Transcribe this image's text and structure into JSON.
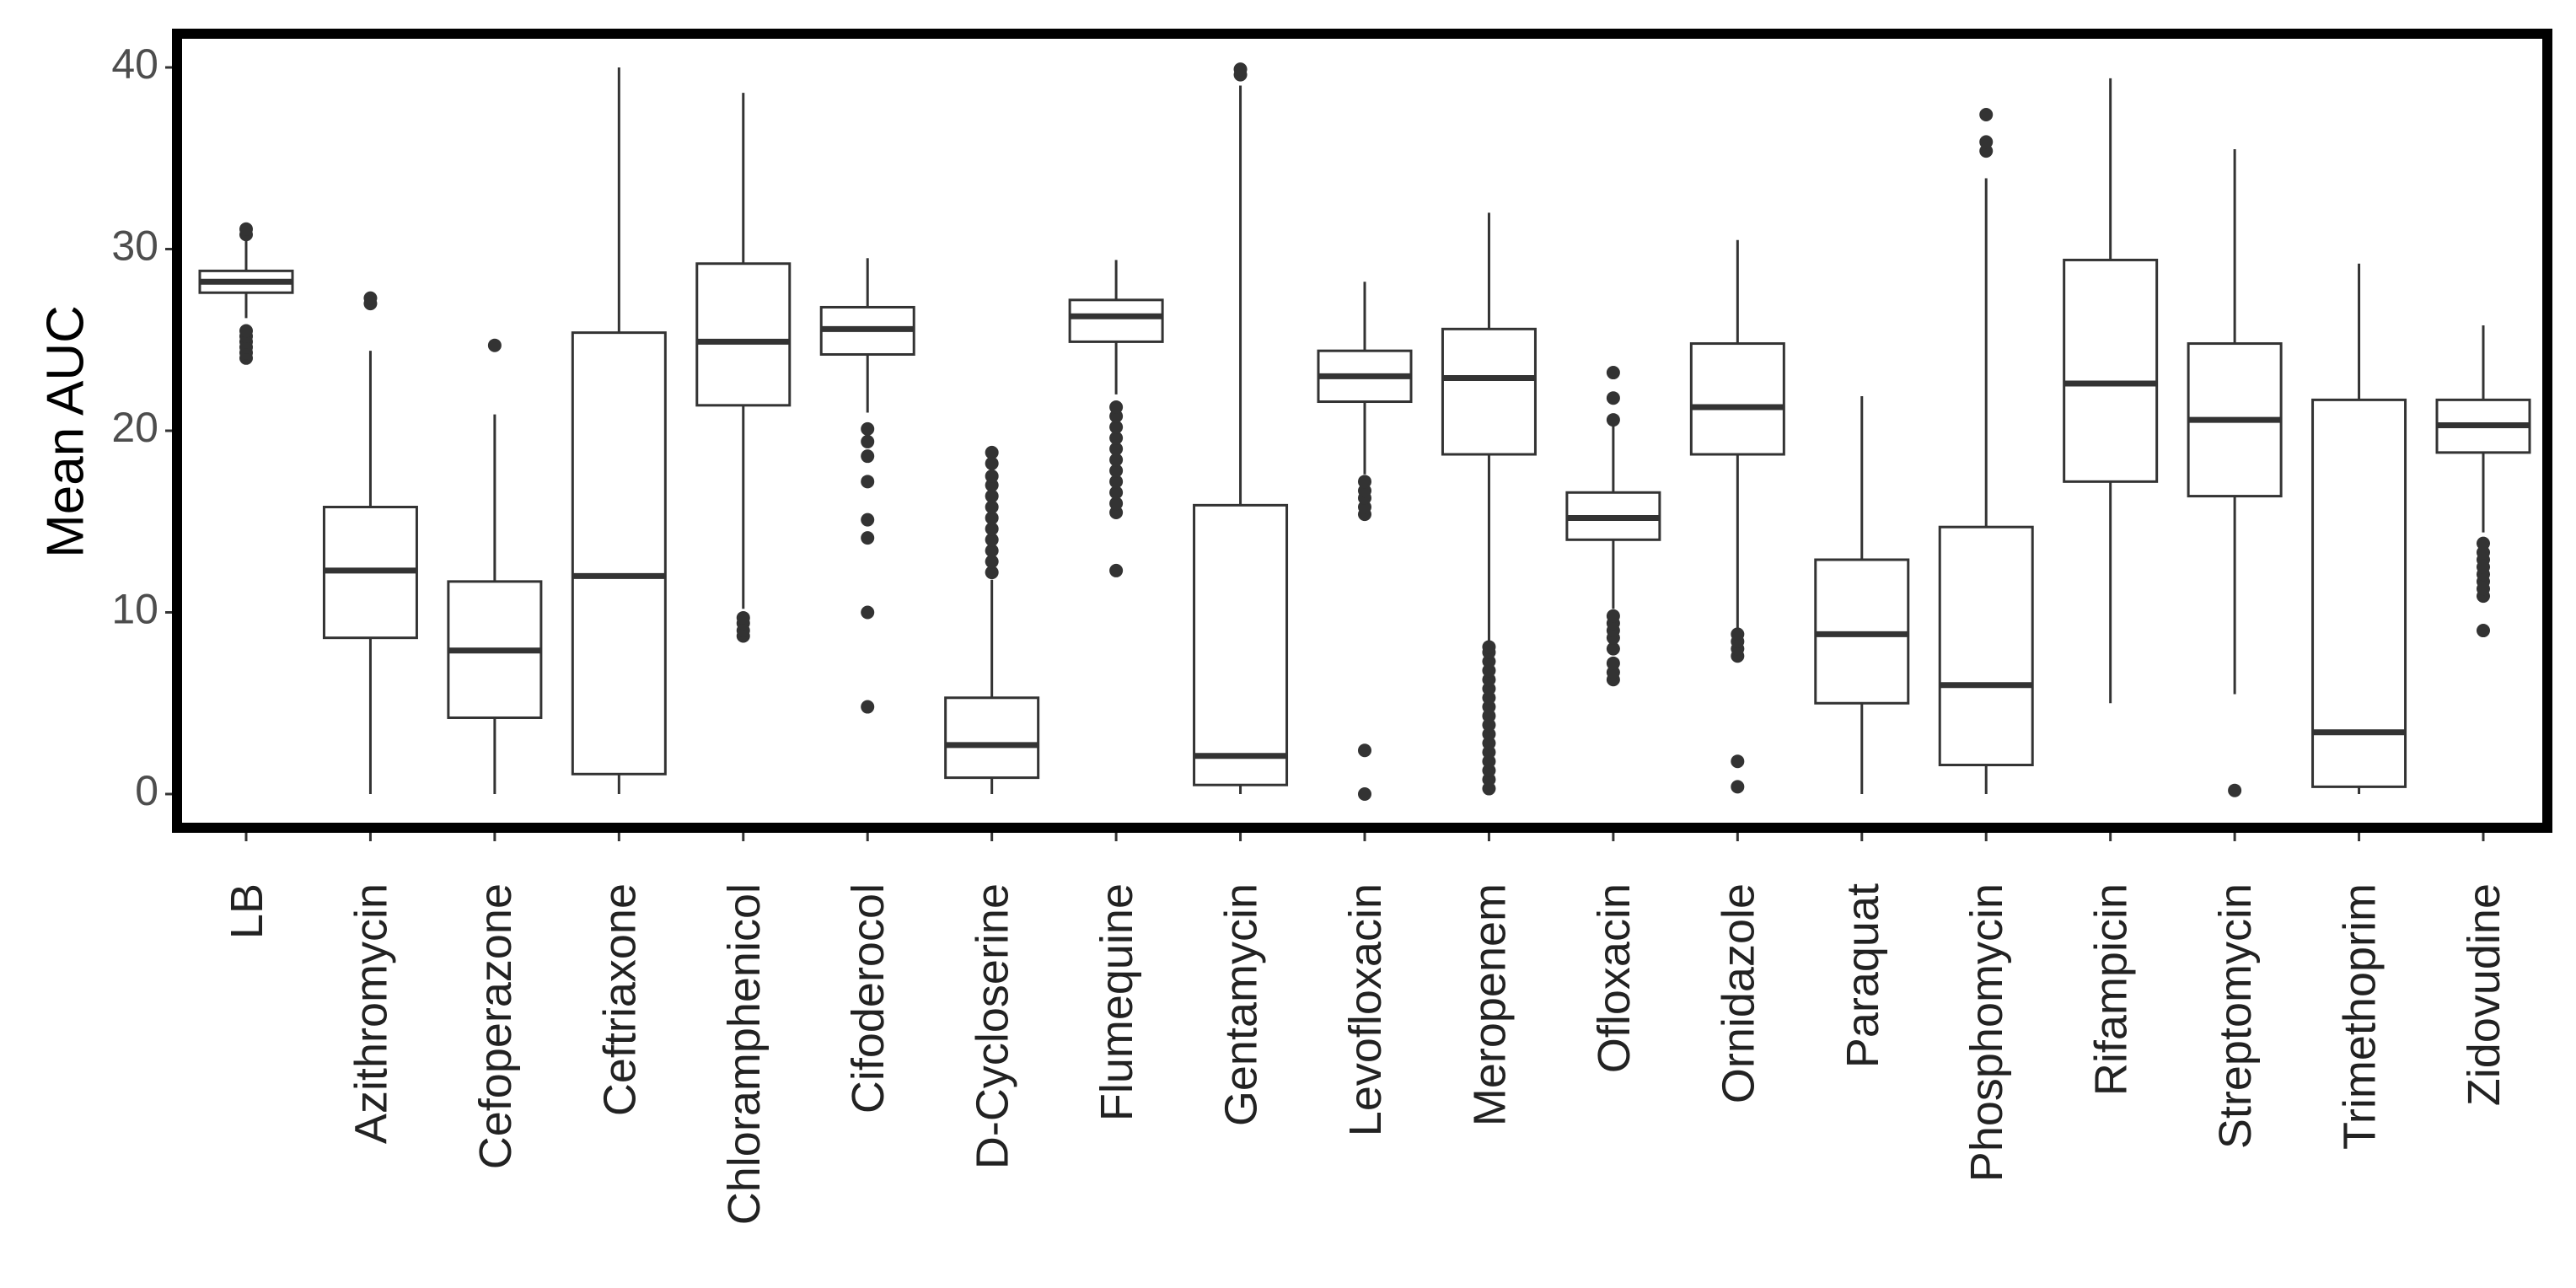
{
  "chart_data": {
    "type": "boxplot",
    "title": "",
    "xlabel": "",
    "ylabel": "Mean AUC",
    "ylim": [
      -1.5,
      42
    ],
    "yticks": [
      0,
      10,
      20,
      30,
      40
    ],
    "ytick_labels": [
      "0",
      "10",
      "20",
      "30",
      "40"
    ],
    "categories": [
      "LB",
      "Azithromycin",
      "Cefoperazone",
      "Ceftriaxone",
      "Chloramphenicol",
      "Cifoderocol",
      "D-Cycloserine",
      "Flumequine",
      "Gentamycin",
      "Levofloxacin",
      "Meropenem",
      "Ofloxacin",
      "Ornidazole",
      "Paraquat",
      "Phosphomycin",
      "Rifampicin",
      "Streptomycin",
      "Trimethoprim",
      "Zidovudine"
    ],
    "boxes": [
      {
        "name": "LB",
        "whisker_low": 26.2,
        "q1": 27.6,
        "median": 28.2,
        "q3": 28.8,
        "whisker_high": 30.5,
        "outliers": [
          24.0,
          24.3,
          24.6,
          24.9,
          25.2,
          25.5,
          30.8,
          31.1
        ]
      },
      {
        "name": "Azithromycin",
        "whisker_low": 0.0,
        "q1": 8.6,
        "median": 12.3,
        "q3": 15.8,
        "whisker_high": 24.4,
        "outliers": [
          27.0,
          27.3
        ]
      },
      {
        "name": "Cefoperazone",
        "whisker_low": 0.0,
        "q1": 4.2,
        "median": 7.9,
        "q3": 11.7,
        "whisker_high": 20.9,
        "outliers": [
          24.7
        ]
      },
      {
        "name": "Ceftriaxone",
        "whisker_low": 0.0,
        "q1": 1.1,
        "median": 12.0,
        "q3": 25.4,
        "whisker_high": 40.0,
        "outliers": []
      },
      {
        "name": "Chloramphenicol",
        "whisker_low": 10.2,
        "q1": 21.4,
        "median": 24.9,
        "q3": 29.2,
        "whisker_high": 38.6,
        "outliers": [
          8.7,
          9.0,
          9.4,
          9.7
        ]
      },
      {
        "name": "Cifoderocol",
        "whisker_low": 21.0,
        "q1": 24.2,
        "median": 25.6,
        "q3": 26.8,
        "whisker_high": 29.5,
        "outliers": [
          4.8,
          10.0,
          14.1,
          15.1,
          17.2,
          18.6,
          19.4,
          20.1
        ]
      },
      {
        "name": "D-Cycloserine",
        "whisker_low": 0.0,
        "q1": 0.9,
        "median": 2.7,
        "q3": 5.3,
        "whisker_high": 11.8,
        "outliers": [
          12.2,
          12.8,
          13.4,
          14.0,
          14.6,
          15.2,
          15.8,
          16.4,
          17.0,
          17.5,
          18.2,
          18.8
        ]
      },
      {
        "name": "Flumequine",
        "whisker_low": 22.0,
        "q1": 24.9,
        "median": 26.3,
        "q3": 27.2,
        "whisker_high": 29.4,
        "outliers": [
          12.3,
          15.5,
          16.0,
          16.6,
          17.2,
          17.8,
          18.4,
          19.0,
          19.6,
          20.2,
          20.8,
          21.3
        ]
      },
      {
        "name": "Gentamycin",
        "whisker_low": 0.0,
        "q1": 0.5,
        "median": 2.1,
        "q3": 15.9,
        "whisker_high": 39.0,
        "outliers": [
          39.6,
          39.9
        ]
      },
      {
        "name": "Levofloxacin",
        "whisker_low": 17.6,
        "q1": 21.6,
        "median": 23.0,
        "q3": 24.4,
        "whisker_high": 28.2,
        "outliers": [
          0.0,
          2.4,
          15.4,
          15.8,
          16.3,
          16.7,
          17.2
        ]
      },
      {
        "name": "Meropenem",
        "whisker_low": 8.4,
        "q1": 18.7,
        "median": 22.9,
        "q3": 25.6,
        "whisker_high": 32.0,
        "outliers": [
          0.3,
          0.8,
          1.3,
          1.8,
          2.3,
          2.8,
          3.3,
          3.8,
          4.3,
          4.8,
          5.3,
          5.8,
          6.3,
          6.8,
          7.3,
          7.8,
          8.1
        ]
      },
      {
        "name": "Ofloxacin",
        "whisker_low": 10.2,
        "q1": 14.0,
        "median": 15.2,
        "q3": 16.6,
        "whisker_high": 20.5,
        "outliers": [
          6.3,
          6.7,
          7.2,
          8.0,
          8.6,
          9.0,
          9.4,
          9.8,
          20.6,
          21.8,
          23.2
        ]
      },
      {
        "name": "Ornidazole",
        "whisker_low": 9.0,
        "q1": 18.7,
        "median": 21.3,
        "q3": 24.8,
        "whisker_high": 30.5,
        "outliers": [
          0.4,
          1.8,
          7.6,
          8.0,
          8.4,
          8.8
        ]
      },
      {
        "name": "Paraquat",
        "whisker_low": 0.0,
        "q1": 5.0,
        "median": 8.8,
        "q3": 12.9,
        "whisker_high": 21.9,
        "outliers": []
      },
      {
        "name": "Phosphomycin",
        "whisker_low": 0.0,
        "q1": 1.6,
        "median": 6.0,
        "q3": 14.7,
        "whisker_high": 33.9,
        "outliers": [
          35.4,
          35.9,
          37.4
        ]
      },
      {
        "name": "Rifampicin",
        "whisker_low": 5.0,
        "q1": 17.2,
        "median": 22.6,
        "q3": 29.4,
        "whisker_high": 39.4,
        "outliers": []
      },
      {
        "name": "Streptomycin",
        "whisker_low": 5.5,
        "q1": 16.4,
        "median": 20.6,
        "q3": 24.8,
        "whisker_high": 35.5,
        "outliers": [
          0.2
        ]
      },
      {
        "name": "Trimethoprim",
        "whisker_low": 0.0,
        "q1": 0.4,
        "median": 3.4,
        "q3": 21.7,
        "whisker_high": 29.2,
        "outliers": []
      },
      {
        "name": "Zidovudine",
        "whisker_low": 14.4,
        "q1": 18.8,
        "median": 20.3,
        "q3": 21.7,
        "whisker_high": 25.8,
        "outliers": [
          9.0,
          10.9,
          11.3,
          11.7,
          12.1,
          12.5,
          12.9,
          13.3,
          13.8
        ]
      }
    ]
  }
}
